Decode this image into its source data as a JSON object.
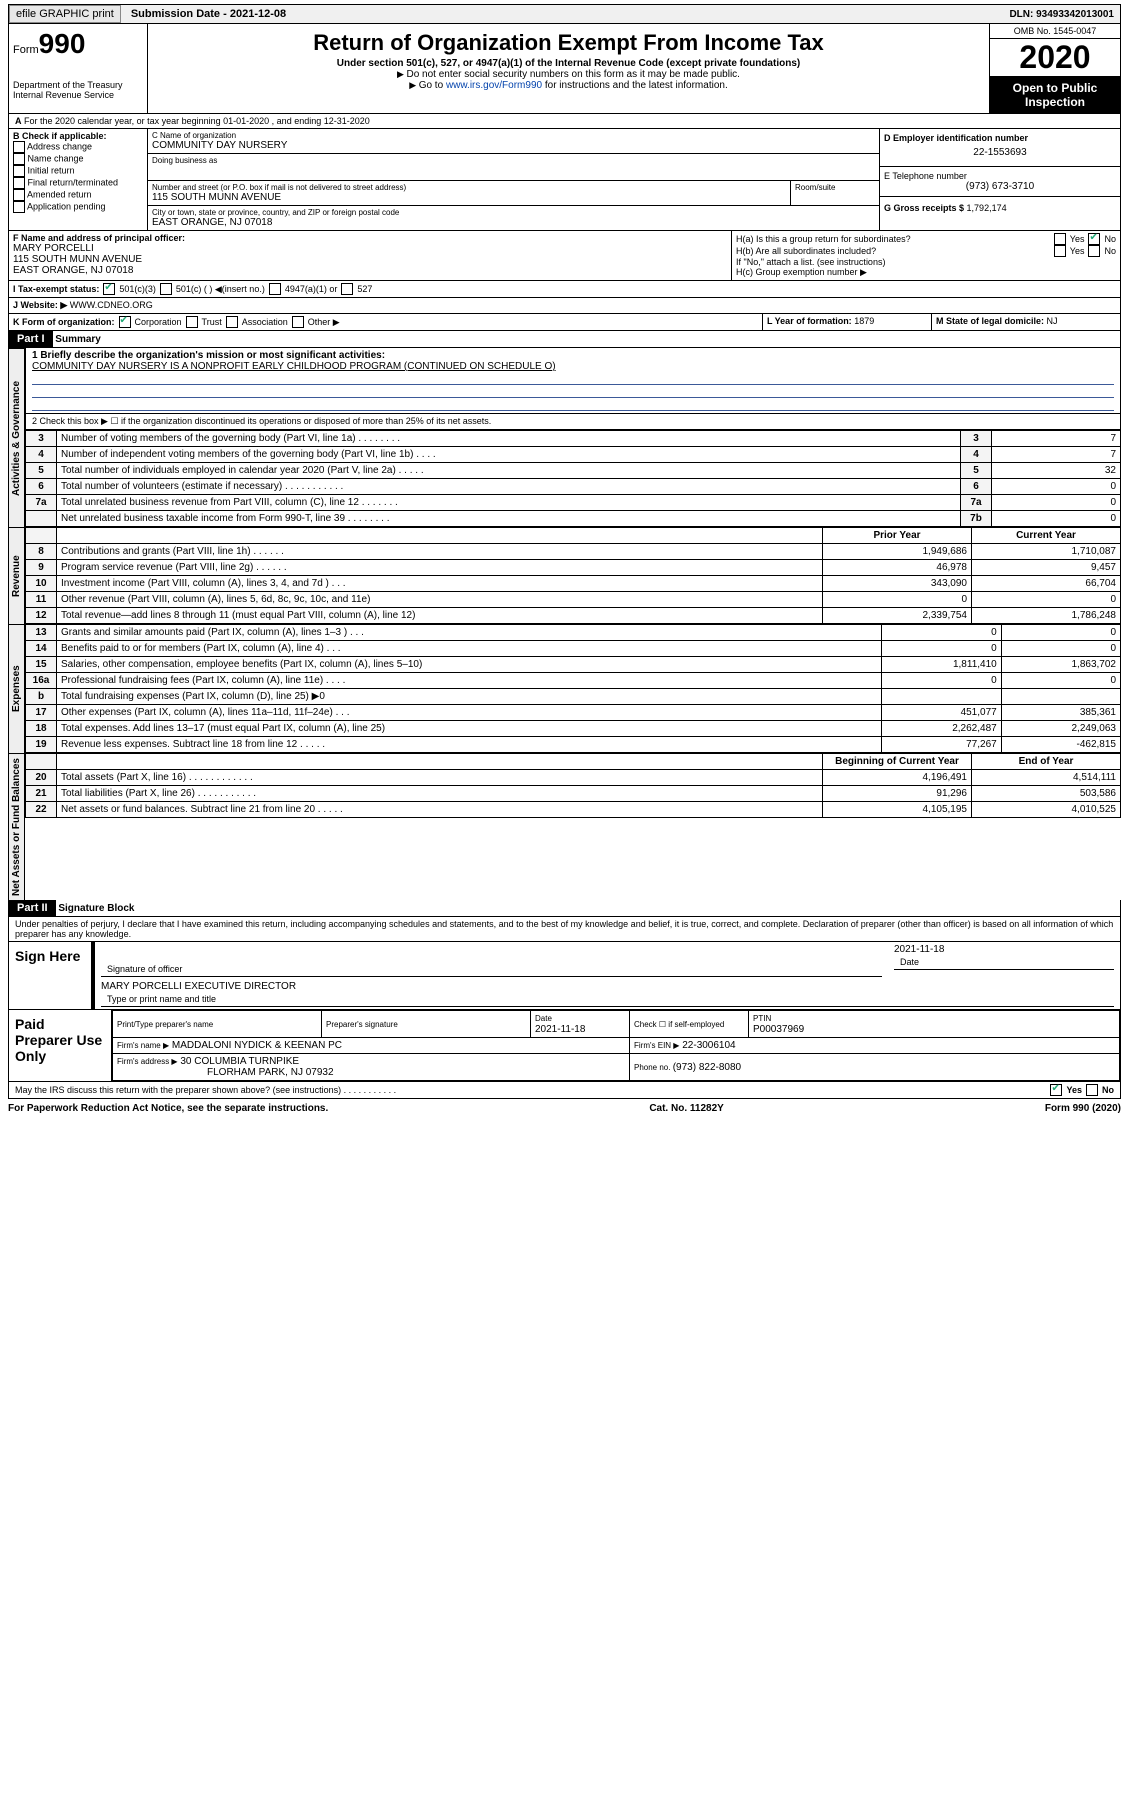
{
  "topbar": {
    "efile": "efile GRAPHIC print",
    "subdate_lbl": "Submission Date - ",
    "subdate": "2021-12-08",
    "dln_lbl": "DLN: ",
    "dln": "93493342013001"
  },
  "header": {
    "form_lbl": "Form",
    "form_no": "990",
    "dept": "Department of the Treasury\nInternal Revenue Service",
    "title": "Return of Organization Exempt From Income Tax",
    "sub": "Under section 501(c), 527, or 4947(a)(1) of the Internal Revenue Code (except private foundations)",
    "note1": "Do not enter social security numbers on this form as it may be made public.",
    "note2": "Go to ",
    "link": "www.irs.gov/Form990",
    "note3": " for instructions and the latest information.",
    "omb": "OMB No. 1545-0047",
    "year": "2020",
    "otp": "Open to Public Inspection"
  },
  "A": {
    "text": "For the 2020 calendar year, or tax year beginning 01-01-2020   , and ending 12-31-2020"
  },
  "B": {
    "lbl": "B Check if applicable:",
    "opts": [
      "Address change",
      "Name change",
      "Initial return",
      "Final return/terminated",
      "Amended return",
      "Application pending"
    ]
  },
  "C": {
    "name_lbl": "C Name of organization",
    "name": "COMMUNITY DAY NURSERY",
    "dba_lbl": "Doing business as",
    "dba": "",
    "addr_lbl": "Number and street (or P.O. box if mail is not delivered to street address)",
    "room_lbl": "Room/suite",
    "addr": "115 SOUTH MUNN AVENUE",
    "city_lbl": "City or town, state or province, country, and ZIP or foreign postal code",
    "city": "EAST ORANGE, NJ  07018"
  },
  "D": {
    "lbl": "D Employer identification number",
    "val": "22-1553693"
  },
  "E": {
    "lbl": "E Telephone number",
    "val": "(973) 673-3710"
  },
  "G": {
    "lbl": "G Gross receipts $ ",
    "val": "1,792,174"
  },
  "F": {
    "lbl": "F  Name and address of principal officer:",
    "name": "MARY PORCELLI",
    "addr1": "115 SOUTH MUNN AVENUE",
    "addr2": "EAST ORANGE, NJ  07018"
  },
  "H": {
    "a": "H(a)  Is this a group return for subordinates?",
    "b": "H(b)  Are all subordinates included?",
    "bnote": "If \"No,\" attach a list. (see instructions)",
    "c": "H(c)  Group exemption number ▶",
    "yes": "Yes",
    "no": "No"
  },
  "I": {
    "lbl": "I  Tax-exempt status:",
    "o1": "501(c)(3)",
    "o2": "501(c) (  ) ◀(insert no.)",
    "o3": "4947(a)(1) or",
    "o4": "527"
  },
  "J": {
    "lbl": "J  Website: ▶",
    "val": "WWW.CDNEO.ORG"
  },
  "K": {
    "lbl": "K Form of organization:",
    "o1": "Corporation",
    "o2": "Trust",
    "o3": "Association",
    "o4": "Other ▶"
  },
  "L": {
    "lbl": "L Year of formation: ",
    "val": "1879"
  },
  "M": {
    "lbl": "M State of legal domicile: ",
    "val": "NJ"
  },
  "part1": {
    "hdr": "Part I",
    "title": "Summary",
    "q1": "1  Briefly describe the organization's mission or most significant activities:",
    "q1v": "COMMUNITY DAY NURSERY IS A NONPROFIT EARLY CHILDHOOD PROGRAM (CONTINUED ON SCHEDULE O)",
    "q2": "2   Check this box ▶ ☐  if the organization discontinued its operations or disposed of more than 25% of its net assets.",
    "gov": [
      {
        "n": "3",
        "t": "Number of voting members of the governing body (Part VI, line 1a)  .   .   .   .   .   .   .   .",
        "b": "3",
        "v": "7"
      },
      {
        "n": "4",
        "t": "Number of independent voting members of the governing body (Part VI, line 1b)  .   .   .   .",
        "b": "4",
        "v": "7"
      },
      {
        "n": "5",
        "t": "Total number of individuals employed in calendar year 2020 (Part V, line 2a)  .   .   .   .   .",
        "b": "5",
        "v": "32"
      },
      {
        "n": "6",
        "t": "Total number of volunteers (estimate if necessary)  .   .   .   .   .   .   .   .   .   .   .",
        "b": "6",
        "v": "0"
      },
      {
        "n": "7a",
        "t": "Total unrelated business revenue from Part VIII, column (C), line 12  .   .   .   .   .   .   .",
        "b": "7a",
        "v": "0"
      },
      {
        "n": "",
        "t": "Net unrelated business taxable income from Form 990-T, line 39  .   .   .   .   .   .   .   .",
        "b": "7b",
        "v": "0"
      }
    ],
    "cols": {
      "py": "Prior Year",
      "cy": "Current Year",
      "bcy": "Beginning of Current Year",
      "eoy": "End of Year"
    },
    "rev": [
      {
        "n": "8",
        "t": "Contributions and grants (Part VIII, line 1h)  .   .   .   .   .   .",
        "p": "1,949,686",
        "c": "1,710,087"
      },
      {
        "n": "9",
        "t": "Program service revenue (Part VIII, line 2g)  .   .   .   .   .   .",
        "p": "46,978",
        "c": "9,457"
      },
      {
        "n": "10",
        "t": "Investment income (Part VIII, column (A), lines 3, 4, and 7d )  .   .   .",
        "p": "343,090",
        "c": "66,704"
      },
      {
        "n": "11",
        "t": "Other revenue (Part VIII, column (A), lines 5, 6d, 8c, 9c, 10c, and 11e)",
        "p": "0",
        "c": "0"
      },
      {
        "n": "12",
        "t": "Total revenue—add lines 8 through 11 (must equal Part VIII, column (A), line 12)",
        "p": "2,339,754",
        "c": "1,786,248"
      }
    ],
    "exp": [
      {
        "n": "13",
        "t": "Grants and similar amounts paid (Part IX, column (A), lines 1–3 )  .   .   .",
        "p": "0",
        "c": "0"
      },
      {
        "n": "14",
        "t": "Benefits paid to or for members (Part IX, column (A), line 4)  .   .   .",
        "p": "0",
        "c": "0"
      },
      {
        "n": "15",
        "t": "Salaries, other compensation, employee benefits (Part IX, column (A), lines 5–10)",
        "p": "1,811,410",
        "c": "1,863,702"
      },
      {
        "n": "16a",
        "t": "Professional fundraising fees (Part IX, column (A), line 11e)  .   .   .   .",
        "p": "0",
        "c": "0"
      },
      {
        "n": "b",
        "t": "Total fundraising expenses (Part IX, column (D), line 25) ▶0",
        "p": "",
        "c": "",
        "shade": true
      },
      {
        "n": "17",
        "t": "Other expenses (Part IX, column (A), lines 11a–11d, 11f–24e)  .   .   .",
        "p": "451,077",
        "c": "385,361"
      },
      {
        "n": "18",
        "t": "Total expenses. Add lines 13–17 (must equal Part IX, column (A), line 25)",
        "p": "2,262,487",
        "c": "2,249,063"
      },
      {
        "n": "19",
        "t": "Revenue less expenses. Subtract line 18 from line 12  .   .   .   .   .",
        "p": "77,267",
        "c": "-462,815"
      }
    ],
    "na": [
      {
        "n": "20",
        "t": "Total assets (Part X, line 16)  .   .   .   .   .   .   .   .   .   .   .   .",
        "p": "4,196,491",
        "c": "4,514,111"
      },
      {
        "n": "21",
        "t": "Total liabilities (Part X, line 26)  .   .   .   .   .   .   .   .   .   .   .",
        "p": "91,296",
        "c": "503,586"
      },
      {
        "n": "22",
        "t": "Net assets or fund balances. Subtract line 21 from line 20  .   .   .   .   .",
        "p": "4,105,195",
        "c": "4,010,525"
      }
    ],
    "tabs": {
      "gov": "Activities & Governance",
      "rev": "Revenue",
      "exp": "Expenses",
      "na": "Net Assets or Fund Balances"
    }
  },
  "part2": {
    "hdr": "Part II",
    "title": "Signature Block",
    "decl": "Under penalties of perjury, I declare that I have examined this return, including accompanying schedules and statements, and to the best of my knowledge and belief, it is true, correct, and complete. Declaration of preparer (other than officer) is based on all information of which preparer has any knowledge."
  },
  "sign": {
    "lbl": "Sign Here",
    "sig_lbl": "Signature of officer",
    "date_lbl": "Date",
    "date": "2021-11-18",
    "name": "MARY PORCELLI  EXECUTIVE DIRECTOR",
    "name_lbl": "Type or print name and title"
  },
  "prep": {
    "lbl": "Paid Preparer Use Only",
    "h": {
      "pn": "Print/Type preparer's name",
      "ps": "Preparer's signature",
      "d": "Date",
      "dv": "2021-11-18",
      "se": "Check ☐ if self-employed",
      "pt": "PTIN",
      "ptv": "P00037969"
    },
    "fn_lbl": "Firm's name   ▶",
    "fn": "MADDALONI NYDICK & KEENAN PC",
    "fe_lbl": "Firm's EIN ▶",
    "fe": "22-3006104",
    "fa_lbl": "Firm's address ▶",
    "fa1": "30 COLUMBIA TURNPIKE",
    "fa2": "FLORHAM PARK, NJ  07932",
    "ph_lbl": "Phone no. ",
    "ph": "(973) 822-8080"
  },
  "discuss": "May the IRS discuss this return with the preparer shown above? (see instructions)  .   .   .   .   .   .   .   .   .   .   .",
  "foot": {
    "l": "For Paperwork Reduction Act Notice, see the separate instructions.",
    "c": "Cat. No. 11282Y",
    "r": "Form 990 (2020)"
  }
}
